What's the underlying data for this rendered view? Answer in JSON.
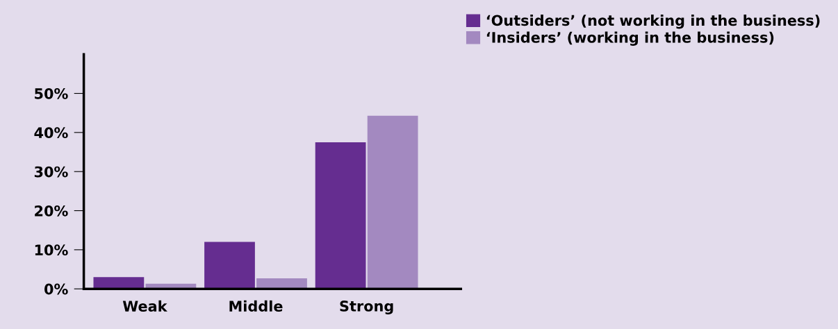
{
  "chart_data": {
    "type": "bar",
    "categories": [
      "Weak",
      "Middle",
      "Strong"
    ],
    "series": [
      {
        "name": "‘Outsiders’ (not working in the business)",
        "color": "#652d90",
        "values": [
          3.0,
          12.0,
          37.5
        ]
      },
      {
        "name": "‘Insiders’ (working in the business)",
        "color": "#a389c0",
        "values": [
          1.3,
          2.7,
          44.3
        ]
      }
    ],
    "ylim": [
      0,
      60
    ],
    "yticks": [
      {
        "value": 0,
        "label": "0%"
      },
      {
        "value": 10,
        "label": "10%"
      },
      {
        "value": 20,
        "label": "20%"
      },
      {
        "value": 30,
        "label": "30%"
      },
      {
        "value": 40,
        "label": "40%"
      },
      {
        "value": 50,
        "label": "50%"
      }
    ],
    "grid": false,
    "legend": "top right"
  }
}
